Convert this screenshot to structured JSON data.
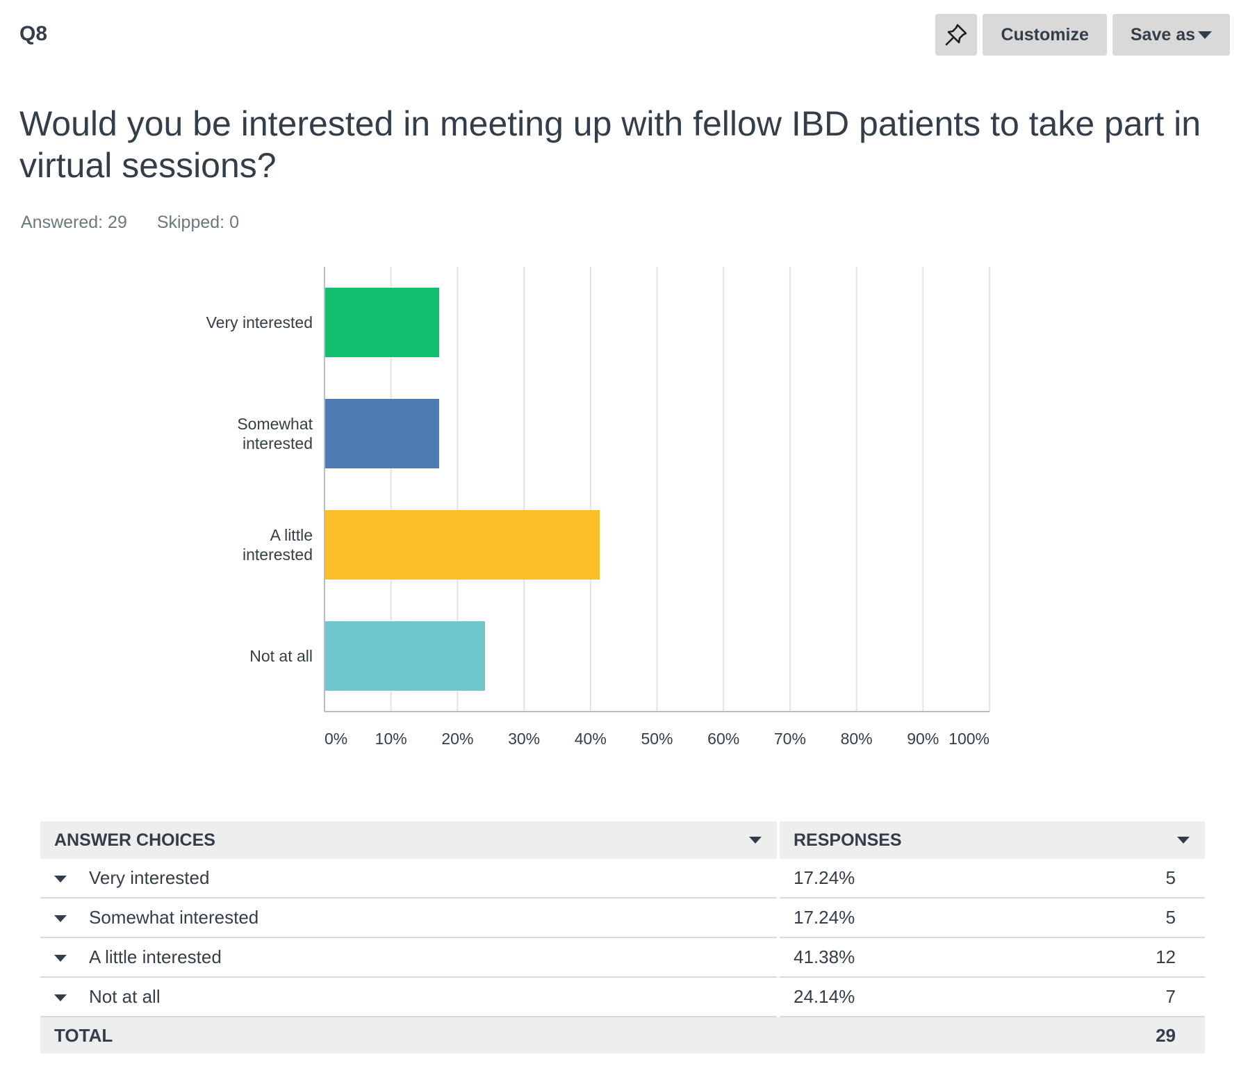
{
  "question_number": "Q8",
  "toolbar": {
    "pin_icon": "pin-icon",
    "customize_label": "Customize",
    "save_as_label": "Save as"
  },
  "question_text": "Would you be interested in meeting up with fellow IBD patients to take part in virtual sessions?",
  "stats": {
    "answered": "Answered: 29",
    "skipped": "Skipped: 0"
  },
  "chart_data": {
    "type": "bar",
    "orientation": "horizontal",
    "categories": [
      [
        "Very interested"
      ],
      [
        "Somewhat",
        "interested"
      ],
      [
        "A little",
        "interested"
      ],
      [
        "Not at all"
      ]
    ],
    "values": [
      17.24,
      17.24,
      41.38,
      24.14
    ],
    "colors": [
      "#12bf6f",
      "#507cb6",
      "#f9be28",
      "#6fc8ce"
    ],
    "xlim": [
      0,
      100
    ],
    "x_ticks": [
      "0%",
      "10%",
      "20%",
      "30%",
      "40%",
      "50%",
      "60%",
      "70%",
      "80%",
      "90%",
      "100%"
    ],
    "grid": true
  },
  "table": {
    "headers": {
      "choices": "ANSWER CHOICES",
      "responses": "RESPONSES"
    },
    "rows": [
      {
        "choice": "Very interested",
        "percent": "17.24%",
        "count": "5"
      },
      {
        "choice": "Somewhat interested",
        "percent": "17.24%",
        "count": "5"
      },
      {
        "choice": "A little interested",
        "percent": "41.38%",
        "count": "12"
      },
      {
        "choice": "Not at all",
        "percent": "24.14%",
        "count": "7"
      }
    ],
    "total_label": "TOTAL",
    "total_count": "29"
  }
}
